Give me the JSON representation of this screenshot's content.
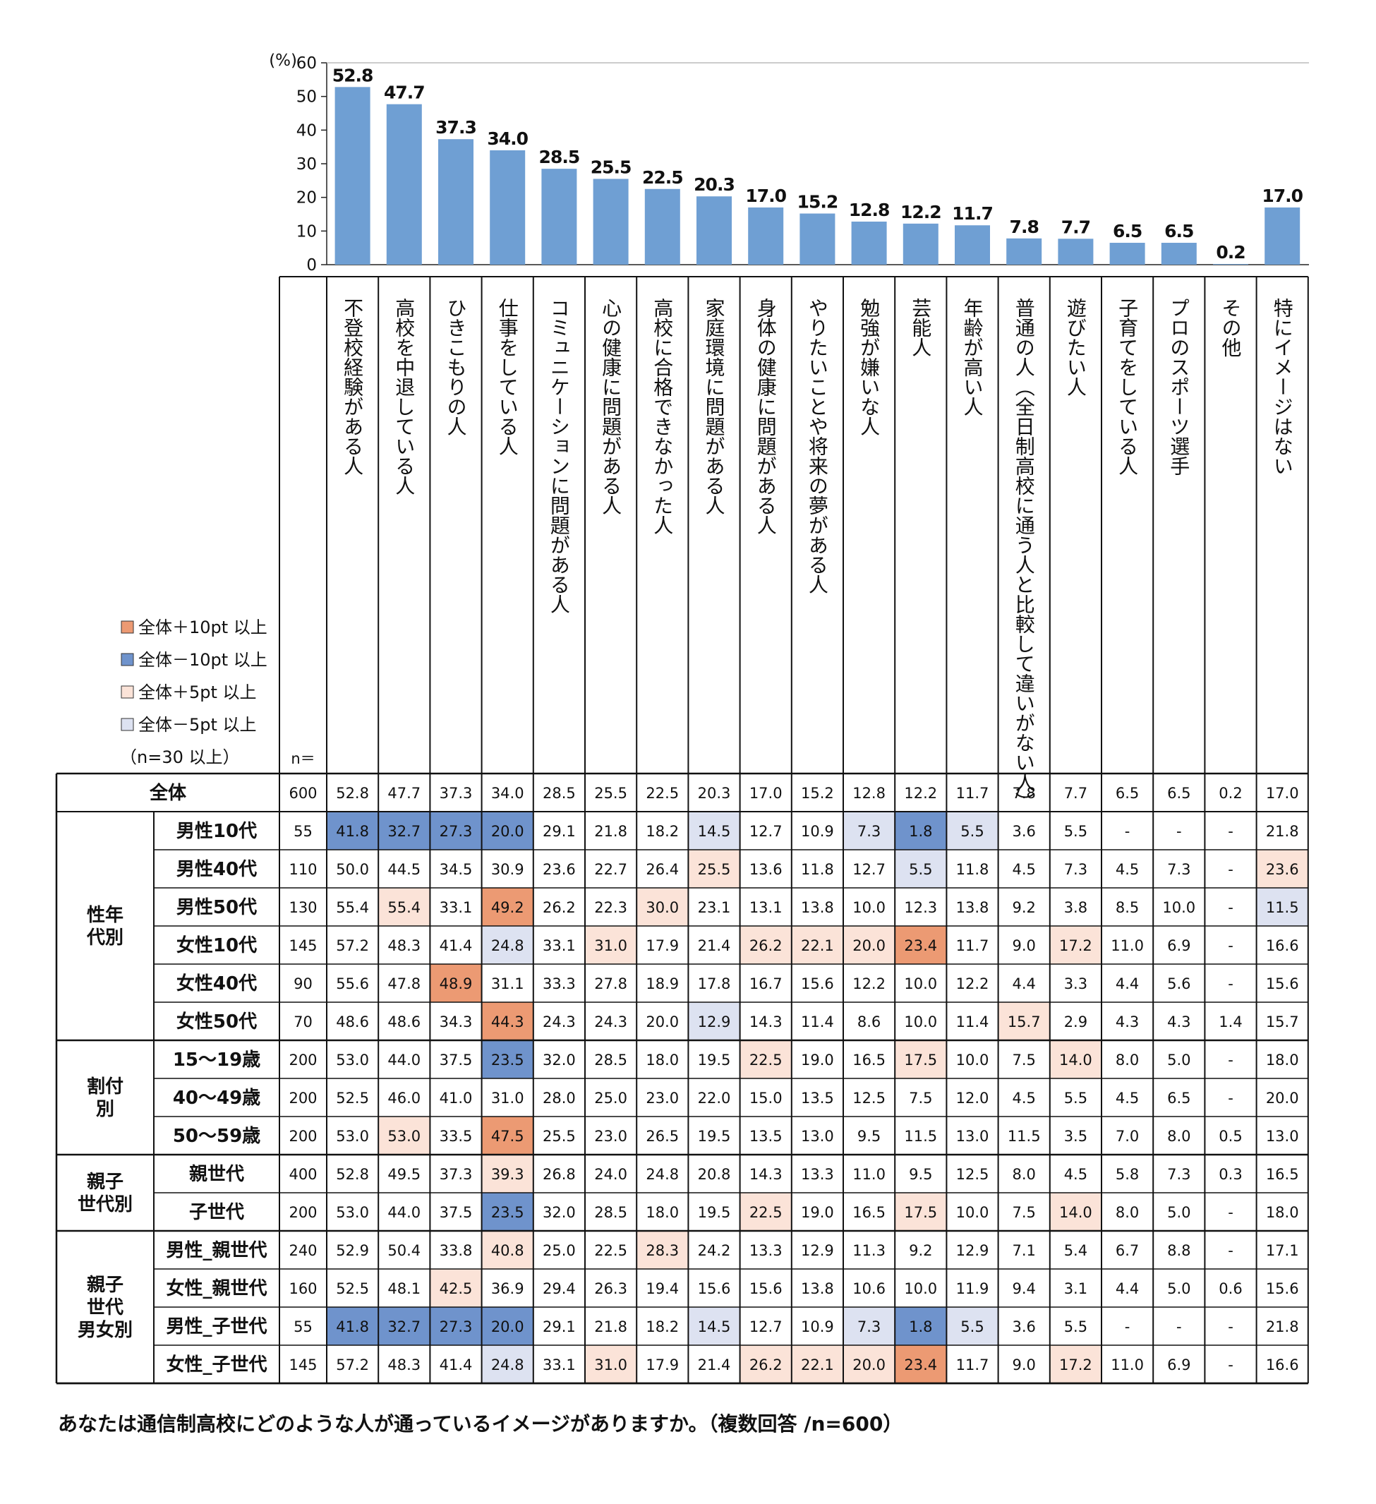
{
  "chart_data": {
    "type": "bar",
    "ylabel": "(%)",
    "ylim": [
      0,
      60
    ],
    "yticks": [
      0,
      10,
      20,
      30,
      40,
      50,
      60
    ],
    "grid": false,
    "categories": [
      "不登校経験がある人",
      "高校を中退している人",
      "ひきこもりの人",
      "仕事をしている人",
      "コミュニケーションに問題がある人",
      "心の健康に問題がある人",
      "高校に合格できなかった人",
      "家庭環境に問題がある人",
      "身体の健康に問題がある人",
      "やりたいことや将来の夢がある人",
      "勉強が嫌いな人",
      "芸能人",
      "年齢が高い人",
      "普通の人（全日制高校に通う人と比較して違いがない人）",
      "遊びたい人",
      "子育てをしている人",
      "プロのスポーツ選手",
      "その他",
      "特にイメージはない"
    ],
    "values": [
      52.8,
      47.7,
      37.3,
      34.0,
      28.5,
      25.5,
      22.5,
      20.3,
      17.0,
      15.2,
      12.8,
      12.2,
      11.7,
      7.8,
      7.7,
      6.5,
      6.5,
      0.2,
      17.0
    ],
    "value_labels": [
      "52.8",
      "47.7",
      "37.3",
      "34.0",
      "28.5",
      "25.5",
      "22.5",
      "20.3",
      "17.0",
      "15.2",
      "12.8",
      "12.2",
      "11.7",
      "7.8",
      "7.7",
      "6.5",
      "6.5",
      "0.2",
      "17.0"
    ],
    "bar_color": "#6f9fd3"
  },
  "table": {
    "n_header": "n＝",
    "total": {
      "label": "全体",
      "n": "600",
      "values": [
        "52.8",
        "47.7",
        "37.3",
        "34.0",
        "28.5",
        "25.5",
        "22.5",
        "20.3",
        "17.0",
        "15.2",
        "12.8",
        "12.2",
        "11.7",
        "7.8",
        "7.7",
        "6.5",
        "6.5",
        "0.2",
        "17.0"
      ]
    },
    "groups": [
      {
        "label": "性年\n代別",
        "rows": [
          {
            "label": "男性10代",
            "n": "55",
            "values": [
              "41.8",
              "32.7",
              "27.3",
              "20.0",
              "29.1",
              "21.8",
              "18.2",
              "14.5",
              "12.7",
              "10.9",
              "7.3",
              "1.8",
              "5.5",
              "3.6",
              "5.5",
              "-",
              "-",
              "-",
              "21.8"
            ],
            "marks": [
              "b",
              "b",
              "b",
              "b",
              "",
              "",
              "",
              "lb",
              "",
              "",
              "lb",
              "b",
              "lb",
              "",
              "",
              "",
              "",
              "",
              ""
            ]
          },
          {
            "label": "男性40代",
            "n": "110",
            "values": [
              "50.0",
              "44.5",
              "34.5",
              "30.9",
              "23.6",
              "22.7",
              "26.4",
              "25.5",
              "13.6",
              "11.8",
              "12.7",
              "5.5",
              "11.8",
              "4.5",
              "7.3",
              "4.5",
              "7.3",
              "-",
              "23.6"
            ],
            "marks": [
              "",
              "",
              "",
              "",
              "",
              "",
              "",
              "lo",
              "",
              "",
              "",
              "lb",
              "",
              "",
              "",
              "",
              "",
              "",
              "lo"
            ]
          },
          {
            "label": "男性50代",
            "n": "130",
            "values": [
              "55.4",
              "55.4",
              "33.1",
              "49.2",
              "26.2",
              "22.3",
              "30.0",
              "23.1",
              "13.1",
              "13.8",
              "10.0",
              "12.3",
              "13.8",
              "9.2",
              "3.8",
              "8.5",
              "10.0",
              "-",
              "11.5"
            ],
            "marks": [
              "",
              "lo",
              "",
              "o",
              "",
              "",
              "lo",
              "",
              "",
              "",
              "",
              "",
              "",
              "",
              "",
              "",
              "",
              "",
              "lb"
            ]
          },
          {
            "label": "女性10代",
            "n": "145",
            "values": [
              "57.2",
              "48.3",
              "41.4",
              "24.8",
              "33.1",
              "31.0",
              "17.9",
              "21.4",
              "26.2",
              "22.1",
              "20.0",
              "23.4",
              "11.7",
              "9.0",
              "17.2",
              "11.0",
              "6.9",
              "-",
              "16.6"
            ],
            "marks": [
              "",
              "",
              "",
              "lb",
              "",
              "lo",
              "",
              "",
              "lo",
              "lo",
              "lo",
              "o",
              "",
              "",
              "lo",
              "",
              "",
              "",
              ""
            ]
          },
          {
            "label": "女性40代",
            "n": "90",
            "values": [
              "55.6",
              "47.8",
              "48.9",
              "31.1",
              "33.3",
              "27.8",
              "18.9",
              "17.8",
              "16.7",
              "15.6",
              "12.2",
              "10.0",
              "12.2",
              "4.4",
              "3.3",
              "4.4",
              "5.6",
              "-",
              "15.6"
            ],
            "marks": [
              "",
              "",
              "o",
              "",
              "",
              "",
              "",
              "",
              "",
              "",
              "",
              "",
              "",
              "",
              "",
              "",
              "",
              "",
              ""
            ]
          },
          {
            "label": "女性50代",
            "n": "70",
            "values": [
              "48.6",
              "48.6",
              "34.3",
              "44.3",
              "24.3",
              "24.3",
              "20.0",
              "12.9",
              "14.3",
              "11.4",
              "8.6",
              "10.0",
              "11.4",
              "15.7",
              "2.9",
              "4.3",
              "4.3",
              "1.4",
              "15.7"
            ],
            "marks": [
              "",
              "",
              "",
              "o",
              "",
              "",
              "",
              "lb",
              "",
              "",
              "",
              "",
              "",
              "lo",
              "",
              "",
              "",
              "",
              ""
            ]
          }
        ]
      },
      {
        "label": "割付\n別",
        "rows": [
          {
            "label": "15～19歳",
            "n": "200",
            "values": [
              "53.0",
              "44.0",
              "37.5",
              "23.5",
              "32.0",
              "28.5",
              "18.0",
              "19.5",
              "22.5",
              "19.0",
              "16.5",
              "17.5",
              "10.0",
              "7.5",
              "14.0",
              "8.0",
              "5.0",
              "-",
              "18.0"
            ],
            "marks": [
              "",
              "",
              "",
              "b",
              "",
              "",
              "",
              "",
              "lo",
              "",
              "",
              "lo",
              "",
              "",
              "lo",
              "",
              "",
              "",
              ""
            ]
          },
          {
            "label": "40～49歳",
            "n": "200",
            "values": [
              "52.5",
              "46.0",
              "41.0",
              "31.0",
              "28.0",
              "25.0",
              "23.0",
              "22.0",
              "15.0",
              "13.5",
              "12.5",
              "7.5",
              "12.0",
              "4.5",
              "5.5",
              "4.5",
              "6.5",
              "-",
              "20.0"
            ],
            "marks": [
              "",
              "",
              "",
              "",
              "",
              "",
              "",
              "",
              "",
              "",
              "",
              "",
              "",
              "",
              "",
              "",
              "",
              "",
              ""
            ]
          },
          {
            "label": "50～59歳",
            "n": "200",
            "values": [
              "53.0",
              "53.0",
              "33.5",
              "47.5",
              "25.5",
              "23.0",
              "26.5",
              "19.5",
              "13.5",
              "13.0",
              "9.5",
              "11.5",
              "13.0",
              "11.5",
              "3.5",
              "7.0",
              "8.0",
              "0.5",
              "13.0"
            ],
            "marks": [
              "",
              "lo",
              "",
              "o",
              "",
              "",
              "",
              "",
              "",
              "",
              "",
              "",
              "",
              "",
              "",
              "",
              "",
              "",
              ""
            ]
          }
        ]
      },
      {
        "label": "親子\n世代別",
        "rows": [
          {
            "label": "親世代",
            "n": "400",
            "values": [
              "52.8",
              "49.5",
              "37.3",
              "39.3",
              "26.8",
              "24.0",
              "24.8",
              "20.8",
              "14.3",
              "13.3",
              "11.0",
              "9.5",
              "12.5",
              "8.0",
              "4.5",
              "5.8",
              "7.3",
              "0.3",
              "16.5"
            ],
            "marks": [
              "",
              "",
              "",
              "lo",
              "",
              "",
              "",
              "",
              "",
              "",
              "",
              "",
              "",
              "",
              "",
              "",
              "",
              "",
              ""
            ]
          },
          {
            "label": "子世代",
            "n": "200",
            "values": [
              "53.0",
              "44.0",
              "37.5",
              "23.5",
              "32.0",
              "28.5",
              "18.0",
              "19.5",
              "22.5",
              "19.0",
              "16.5",
              "17.5",
              "10.0",
              "7.5",
              "14.0",
              "8.0",
              "5.0",
              "-",
              "18.0"
            ],
            "marks": [
              "",
              "",
              "",
              "b",
              "",
              "",
              "",
              "",
              "lo",
              "",
              "",
              "lo",
              "",
              "",
              "lo",
              "",
              "",
              "",
              ""
            ]
          }
        ]
      },
      {
        "label": "親子\n世代\n男女別",
        "rows": [
          {
            "label": "男性_親世代",
            "n": "240",
            "values": [
              "52.9",
              "50.4",
              "33.8",
              "40.8",
              "25.0",
              "22.5",
              "28.3",
              "24.2",
              "13.3",
              "12.9",
              "11.3",
              "9.2",
              "12.9",
              "7.1",
              "5.4",
              "6.7",
              "8.8",
              "-",
              "17.1"
            ],
            "marks": [
              "",
              "",
              "",
              "lo",
              "",
              "",
              "lo",
              "",
              "",
              "",
              "",
              "",
              "",
              "",
              "",
              "",
              "",
              "",
              ""
            ]
          },
          {
            "label": "女性_親世代",
            "n": "160",
            "values": [
              "52.5",
              "48.1",
              "42.5",
              "36.9",
              "29.4",
              "26.3",
              "19.4",
              "15.6",
              "15.6",
              "13.8",
              "10.6",
              "10.0",
              "11.9",
              "9.4",
              "3.1",
              "4.4",
              "5.0",
              "0.6",
              "15.6"
            ],
            "marks": [
              "",
              "",
              "lo",
              "",
              "",
              "",
              "",
              "",
              "",
              "",
              "",
              "",
              "",
              "",
              "",
              "",
              "",
              "",
              ""
            ]
          },
          {
            "label": "男性_子世代",
            "n": "55",
            "values": [
              "41.8",
              "32.7",
              "27.3",
              "20.0",
              "29.1",
              "21.8",
              "18.2",
              "14.5",
              "12.7",
              "10.9",
              "7.3",
              "1.8",
              "5.5",
              "3.6",
              "5.5",
              "-",
              "-",
              "-",
              "21.8"
            ],
            "marks": [
              "b",
              "b",
              "b",
              "b",
              "",
              "",
              "",
              "lb",
              "",
              "",
              "lb",
              "b",
              "lb",
              "",
              "",
              "",
              "",
              "",
              ""
            ]
          },
          {
            "label": "女性_子世代",
            "n": "145",
            "values": [
              "57.2",
              "48.3",
              "41.4",
              "24.8",
              "33.1",
              "31.0",
              "17.9",
              "21.4",
              "26.2",
              "22.1",
              "20.0",
              "23.4",
              "11.7",
              "9.0",
              "17.2",
              "11.0",
              "6.9",
              "-",
              "16.6"
            ],
            "marks": [
              "",
              "",
              "",
              "lb",
              "",
              "lo",
              "",
              "",
              "lo",
              "lo",
              "lo",
              "o",
              "",
              "",
              "lo",
              "",
              "",
              "",
              ""
            ]
          }
        ]
      }
    ]
  },
  "legend": {
    "items": [
      {
        "label": "全体＋10pt 以上",
        "color": "#ec9a73"
      },
      {
        "label": "全体－10pt 以上",
        "color": "#6f93cc"
      },
      {
        "label": "全体＋5pt 以上",
        "color": "#fbe3d8"
      },
      {
        "label": "全体－5pt 以上",
        "color": "#dde2f1"
      }
    ],
    "note": "（n=30 以上）"
  },
  "colors": {
    "o": "#ec9a73",
    "b": "#6f93cc",
    "lo": "#fbe3d8",
    "lb": "#dde2f1"
  },
  "caption": "あなたは通信制高校にどのような人が通っているイメージがありますか。（複数回答 /n=600）"
}
